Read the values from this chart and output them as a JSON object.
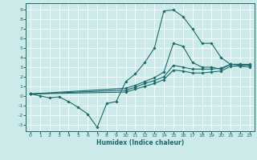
{
  "xlabel": "Humidex (Indice chaleur)",
  "xlim": [
    -0.5,
    23.5
  ],
  "ylim": [
    -3.7,
    9.7
  ],
  "xticks": [
    0,
    1,
    2,
    3,
    4,
    5,
    6,
    7,
    8,
    9,
    10,
    11,
    12,
    13,
    14,
    15,
    16,
    17,
    18,
    19,
    20,
    21,
    22,
    23
  ],
  "yticks": [
    -3,
    -2,
    -1,
    0,
    1,
    2,
    3,
    4,
    5,
    6,
    7,
    8,
    9
  ],
  "bg_color": "#cceaea",
  "line_color": "#1a6b6b",
  "grid_color": "#b0d8d8",
  "line1_x": [
    0,
    1,
    2,
    3,
    4,
    5,
    6,
    7,
    8,
    9,
    10,
    11,
    12,
    13,
    14,
    15,
    16,
    17,
    18,
    19,
    20,
    21,
    22,
    23
  ],
  "line1_y": [
    0.2,
    0.0,
    -0.2,
    -0.1,
    -0.6,
    -1.2,
    -1.9,
    -3.3,
    -0.8,
    -0.6,
    1.5,
    2.3,
    3.5,
    5.0,
    8.9,
    9.0,
    8.3,
    7.0,
    5.5,
    5.5,
    4.0,
    3.3,
    3.2,
    3.2
  ],
  "line2_x": [
    0,
    10,
    11,
    12,
    13,
    14,
    15,
    16,
    17,
    18,
    19,
    20,
    21,
    22,
    23
  ],
  "line2_y": [
    0.2,
    0.8,
    1.1,
    1.5,
    1.9,
    2.5,
    5.5,
    5.2,
    3.5,
    3.0,
    3.0,
    2.8,
    3.3,
    3.3,
    3.3
  ],
  "line3_x": [
    0,
    10,
    11,
    12,
    13,
    14,
    15,
    16,
    17,
    18,
    19,
    20,
    21,
    22,
    23
  ],
  "line3_y": [
    0.2,
    0.6,
    0.9,
    1.3,
    1.6,
    2.0,
    3.2,
    3.0,
    2.8,
    2.8,
    2.8,
    2.9,
    3.3,
    3.3,
    3.2
  ],
  "line4_x": [
    0,
    10,
    11,
    12,
    13,
    14,
    15,
    16,
    17,
    18,
    19,
    20,
    21,
    22,
    23
  ],
  "line4_y": [
    0.2,
    0.4,
    0.7,
    1.0,
    1.3,
    1.7,
    2.7,
    2.6,
    2.4,
    2.4,
    2.5,
    2.6,
    3.1,
    3.1,
    3.0
  ]
}
